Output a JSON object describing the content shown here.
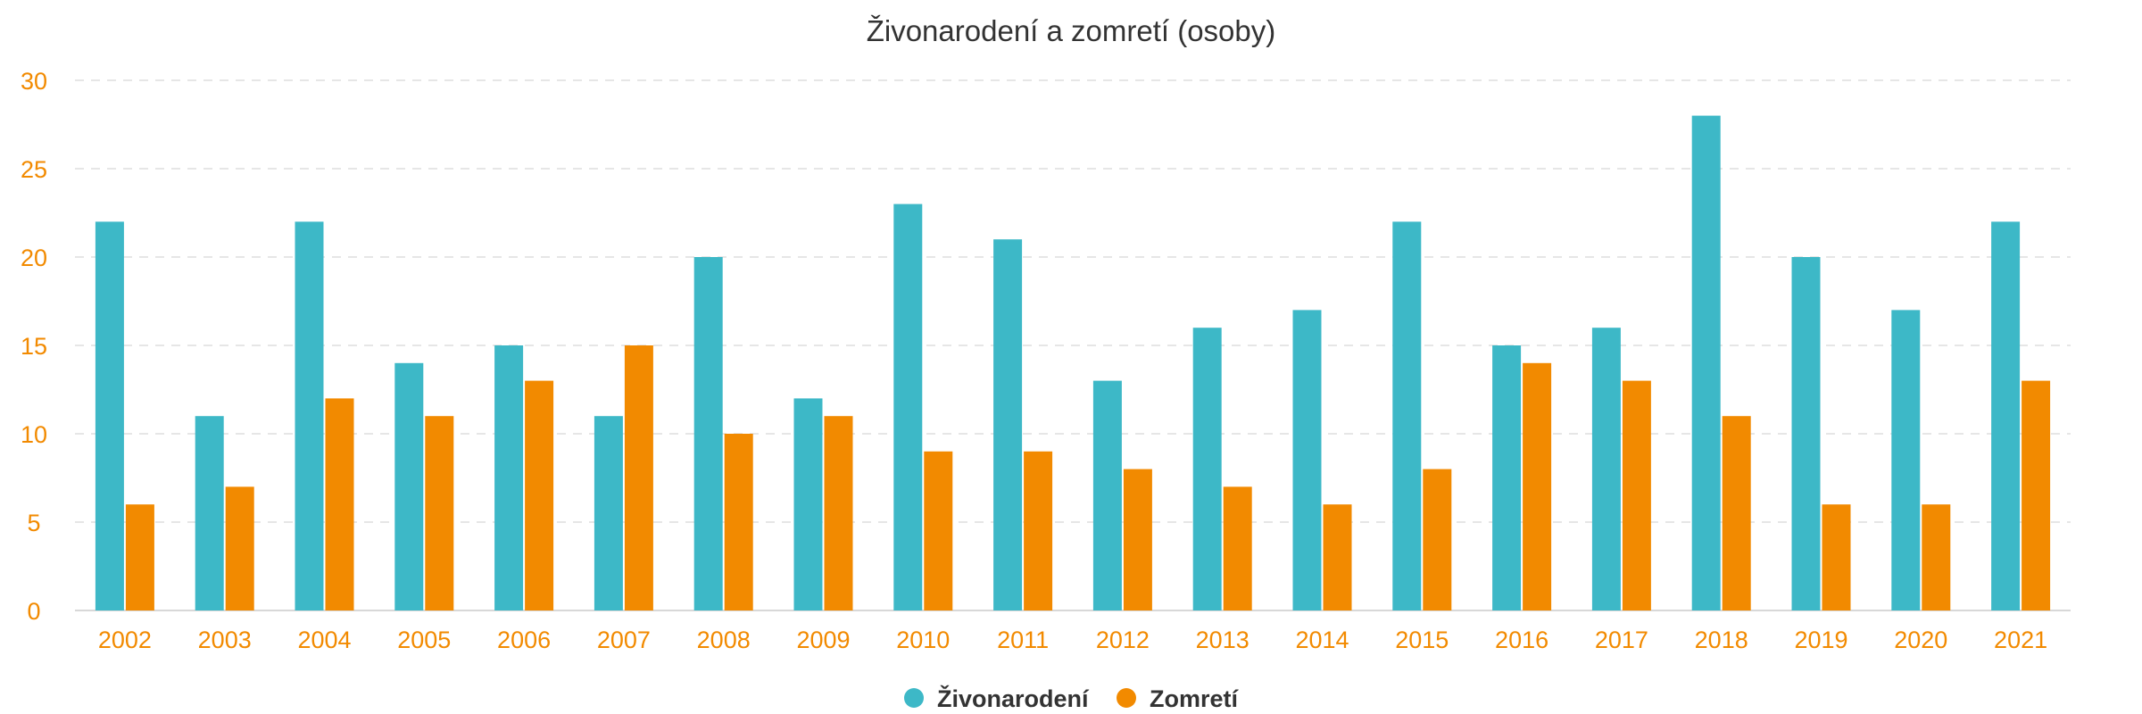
{
  "chart_data": {
    "type": "bar",
    "title": "Živonarodení a zomretí (osoby)",
    "xlabel": "",
    "ylabel": "",
    "ylim": [
      0,
      30
    ],
    "yticks": [
      0,
      5,
      10,
      15,
      20,
      25,
      30
    ],
    "grid": true,
    "legend_position": "bottom-center",
    "categories": [
      "2002",
      "2003",
      "2004",
      "2005",
      "2006",
      "2007",
      "2008",
      "2009",
      "2010",
      "2011",
      "2012",
      "2013",
      "2014",
      "2015",
      "2016",
      "2017",
      "2018",
      "2019",
      "2020",
      "2021"
    ],
    "series": [
      {
        "name": "Živonarodení",
        "color": "#3db8c7",
        "values": [
          22,
          11,
          22,
          14,
          15,
          11,
          20,
          12,
          23,
          21,
          13,
          16,
          17,
          22,
          15,
          16,
          28,
          20,
          17,
          22
        ]
      },
      {
        "name": "Zomretí",
        "color": "#f28a00",
        "values": [
          6,
          7,
          12,
          11,
          13,
          15,
          10,
          11,
          9,
          9,
          8,
          7,
          6,
          8,
          14,
          13,
          11,
          6,
          6,
          13
        ]
      }
    ]
  }
}
